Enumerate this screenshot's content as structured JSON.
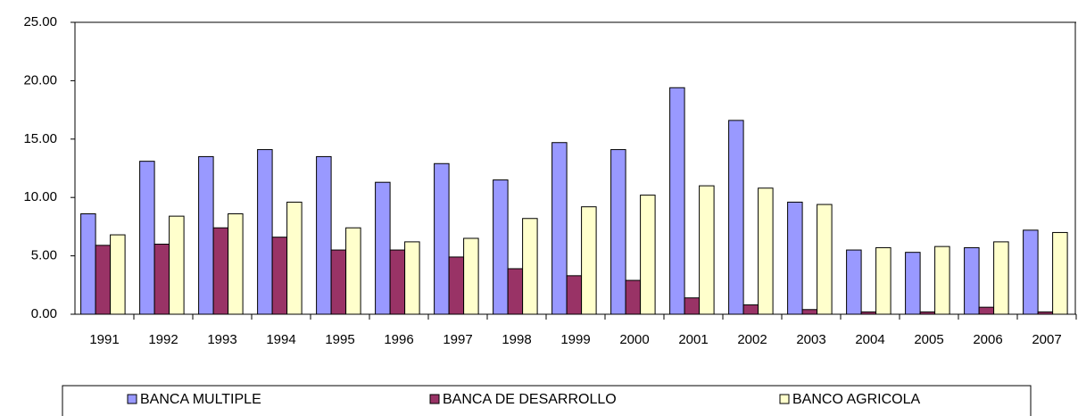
{
  "chart_data": {
    "type": "bar",
    "categories": [
      "1991",
      "1992",
      "1993",
      "1994",
      "1995",
      "1996",
      "1997",
      "1998",
      "1999",
      "2000",
      "2001",
      "2002",
      "2003",
      "2004",
      "2005",
      "2006",
      "2007"
    ],
    "series": [
      {
        "name": "BANCA MULTIPLE",
        "color": "#9999ff",
        "values": [
          8.6,
          13.1,
          13.5,
          14.1,
          13.5,
          11.3,
          12.9,
          11.5,
          14.7,
          14.1,
          19.4,
          16.6,
          9.6,
          5.5,
          5.3,
          5.7,
          7.2
        ]
      },
      {
        "name": "BANCA DE DESARROLLO",
        "color": "#993366",
        "values": [
          5.9,
          6.0,
          7.4,
          6.6,
          5.5,
          5.5,
          4.9,
          3.9,
          3.3,
          2.9,
          1.4,
          0.8,
          0.4,
          0.2,
          0.2,
          0.6,
          0.2
        ]
      },
      {
        "name": "BANCO AGRICOLA",
        "color": "#ffffcc",
        "values": [
          6.8,
          8.4,
          8.6,
          9.6,
          7.4,
          6.2,
          6.5,
          8.2,
          9.2,
          10.2,
          11.0,
          10.8,
          9.4,
          5.7,
          5.8,
          6.2,
          7.0
        ]
      }
    ],
    "ylim": [
      0,
      25
    ],
    "yticks": [
      {
        "value": 0,
        "label": "0.00"
      },
      {
        "value": 5,
        "label": "5.00"
      },
      {
        "value": 10,
        "label": "10.00"
      },
      {
        "value": 15,
        "label": "15.00"
      },
      {
        "value": 20,
        "label": "20.00"
      },
      {
        "value": 25,
        "label": "25.00"
      }
    ],
    "grid": false,
    "legend": "bottom"
  }
}
